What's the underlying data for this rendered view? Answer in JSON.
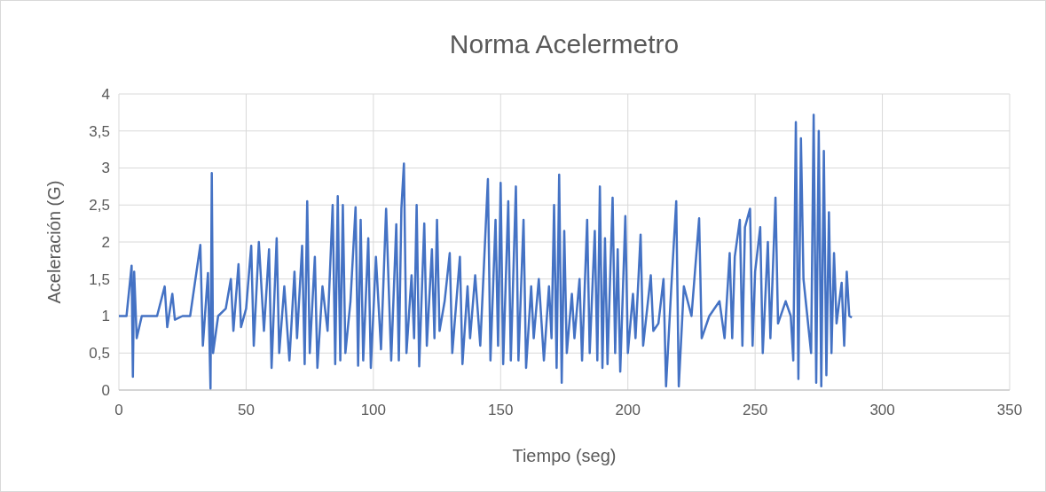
{
  "chart_data": {
    "type": "line",
    "title": "Norma Acelermetro",
    "xlabel": "Tiempo (seg)",
    "ylabel": "Aceleración (G)",
    "xlim": [
      0,
      350
    ],
    "xticks": [
      0,
      50,
      100,
      150,
      200,
      250,
      300,
      350
    ],
    "ylim": [
      0,
      4
    ],
    "yticks": [
      0,
      {
        "value": 0.5,
        "label": "0,5"
      },
      1,
      {
        "value": 1.5,
        "label": "1,5"
      },
      2,
      {
        "value": 2.5,
        "label": "2,5"
      },
      3,
      {
        "value": 3.5,
        "label": "3,5"
      },
      4
    ],
    "grid": true,
    "line_style": "solid",
    "series": [
      {
        "color": "#4472c4",
        "x": [
          0,
          3,
          5,
          5.5,
          6,
          7,
          9,
          12,
          15,
          18,
          19,
          21,
          22,
          25,
          28,
          32,
          33,
          35,
          36,
          36.5,
          37,
          39,
          42,
          44,
          45,
          47,
          48,
          50,
          52,
          53,
          55,
          57,
          59,
          60,
          62,
          63,
          65,
          67,
          69,
          70,
          72,
          73,
          74,
          75,
          77,
          78,
          80,
          82,
          84,
          85,
          86,
          87,
          88,
          89,
          91,
          93,
          94,
          95,
          96,
          98,
          99,
          101,
          103,
          105,
          107,
          109,
          110,
          111,
          112,
          113,
          115,
          116,
          117,
          118,
          120,
          121,
          123,
          124,
          125,
          126,
          128,
          130,
          131,
          134,
          135,
          137,
          138,
          140,
          142,
          145,
          146,
          148,
          149,
          150,
          151,
          153,
          154,
          156,
          157,
          159,
          160,
          162,
          163,
          165,
          167,
          169,
          170,
          171,
          172,
          173,
          174,
          175,
          176,
          178,
          179,
          181,
          182,
          184,
          185,
          187,
          188,
          189,
          190,
          191,
          192,
          194,
          195,
          196,
          197,
          199,
          200,
          202,
          203,
          205,
          206,
          209,
          210,
          212,
          214,
          215,
          217,
          219,
          220,
          222,
          225,
          228,
          229,
          232,
          236,
          238,
          240,
          241,
          242,
          244,
          245,
          246,
          248,
          249,
          250,
          252,
          253,
          255,
          256,
          258,
          259,
          262,
          264,
          265,
          266,
          267,
          268,
          269,
          272,
          273,
          274,
          275,
          276,
          277,
          278,
          279,
          280,
          281,
          282,
          284,
          285,
          286,
          287,
          288
        ],
        "values": [
          1,
          1,
          1.68,
          0.18,
          1.6,
          0.7,
          1,
          1,
          1,
          1.4,
          0.85,
          1.3,
          0.95,
          1,
          1,
          1.96,
          0.6,
          1.58,
          0.02,
          2.93,
          0.5,
          1,
          1.1,
          1.5,
          0.8,
          1.7,
          0.85,
          1.1,
          1.95,
          0.6,
          2,
          0.8,
          1.9,
          0.3,
          2.05,
          0.5,
          1.4,
          0.4,
          1.6,
          0.7,
          1.95,
          0.35,
          2.55,
          0.5,
          1.8,
          0.3,
          1.4,
          0.8,
          2.5,
          0.35,
          2.62,
          0.4,
          2.5,
          0.5,
          1.2,
          2.47,
          0.33,
          2.3,
          0.4,
          2.05,
          0.3,
          1.8,
          0.55,
          2.45,
          0.4,
          2.24,
          0.4,
          2.45,
          3.06,
          0.5,
          1.55,
          0.7,
          2.5,
          0.32,
          2.25,
          0.6,
          1.9,
          0.7,
          2.3,
          0.8,
          1.2,
          1.85,
          0.5,
          1.8,
          0.35,
          1.4,
          0.7,
          1.55,
          0.6,
          2.85,
          0.4,
          2.3,
          0.6,
          2.8,
          0.35,
          2.55,
          0.4,
          2.75,
          0.4,
          2.3,
          0.3,
          1.4,
          0.7,
          1.5,
          0.4,
          1.4,
          0.7,
          2.5,
          0.3,
          2.91,
          0.1,
          2.15,
          0.5,
          1.3,
          0.7,
          1.5,
          0.4,
          2.3,
          0.5,
          2.15,
          0.4,
          2.75,
          0.3,
          2.05,
          0.35,
          2.6,
          0.5,
          1.9,
          0.25,
          2.35,
          0.5,
          1.3,
          0.7,
          2.1,
          0.6,
          1.55,
          0.8,
          0.9,
          1.5,
          0.05,
          1.35,
          2.55,
          0.05,
          1.4,
          1,
          2.32,
          0.7,
          1,
          1.2,
          0.7,
          1.85,
          0.7,
          1.8,
          2.3,
          0.6,
          2.2,
          2.45,
          0.6,
          1.6,
          2.2,
          0.5,
          2,
          0.7,
          2.6,
          0.9,
          1.2,
          1,
          0.4,
          3.62,
          0.15,
          3.4,
          1.5,
          0.5,
          3.72,
          0.1,
          3.5,
          0.05,
          3.23,
          0.2,
          2.4,
          0.5,
          1.85,
          0.9,
          1.45,
          0.6,
          1.6,
          1,
          0.98
        ]
      }
    ]
  }
}
